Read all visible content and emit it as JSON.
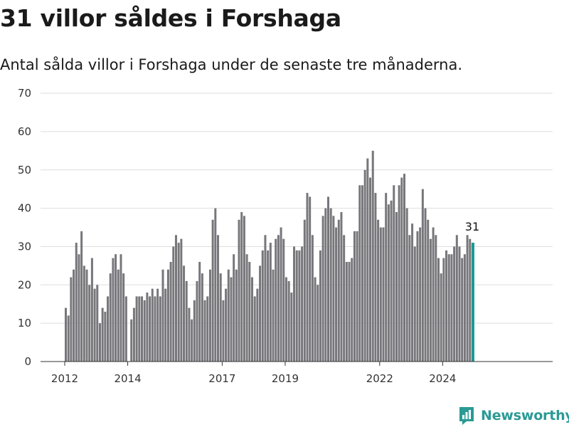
{
  "title": "31 villor såldes i Forshaga",
  "subtitle": "Antal sålda villor i Forshaga under de senaste tre månaderna.",
  "brand": {
    "name": "Newsworthy",
    "color": "#2b9a95"
  },
  "chart_data": {
    "type": "bar",
    "grid": true,
    "ylim": [
      0,
      70
    ],
    "yticks": [
      0,
      10,
      20,
      30,
      40,
      50,
      60,
      70
    ],
    "xticks": [
      "2012",
      "2014",
      "2017",
      "2019",
      "2022",
      "2024"
    ],
    "bar_color": "#77767b",
    "highlight_color": "#1a9a95",
    "highlight_label": "31",
    "values": [
      14,
      12,
      22,
      24,
      31,
      28,
      34,
      25,
      24,
      20,
      27,
      19,
      20,
      10,
      14,
      13,
      17,
      23,
      27,
      28,
      24,
      28,
      23,
      17,
      null,
      11,
      14,
      17,
      17,
      17,
      16,
      18,
      17,
      19,
      17,
      19,
      17,
      24,
      19,
      24,
      26,
      30,
      33,
      31,
      32,
      25,
      21,
      14,
      11,
      16,
      21,
      26,
      23,
      16,
      17,
      24,
      37,
      40,
      33,
      23,
      16,
      19,
      24,
      22,
      28,
      24,
      37,
      39,
      38,
      28,
      26,
      22,
      17,
      19,
      25,
      29,
      33,
      29,
      31,
      24,
      32,
      33,
      35,
      32,
      22,
      21,
      18,
      30,
      29,
      29,
      30,
      37,
      44,
      43,
      33,
      22,
      20,
      29,
      38,
      40,
      43,
      40,
      38,
      35,
      37,
      39,
      33,
      26,
      26,
      27,
      34,
      34,
      46,
      46,
      50,
      53,
      48,
      55,
      44,
      37,
      35,
      35,
      44,
      41,
      42,
      46,
      39,
      46,
      48,
      49,
      40,
      33,
      36,
      30,
      34,
      35,
      45,
      40,
      37,
      32,
      35,
      33,
      27,
      23,
      27,
      29,
      28,
      28,
      30,
      33,
      30,
      27,
      28,
      33,
      32,
      31
    ]
  }
}
